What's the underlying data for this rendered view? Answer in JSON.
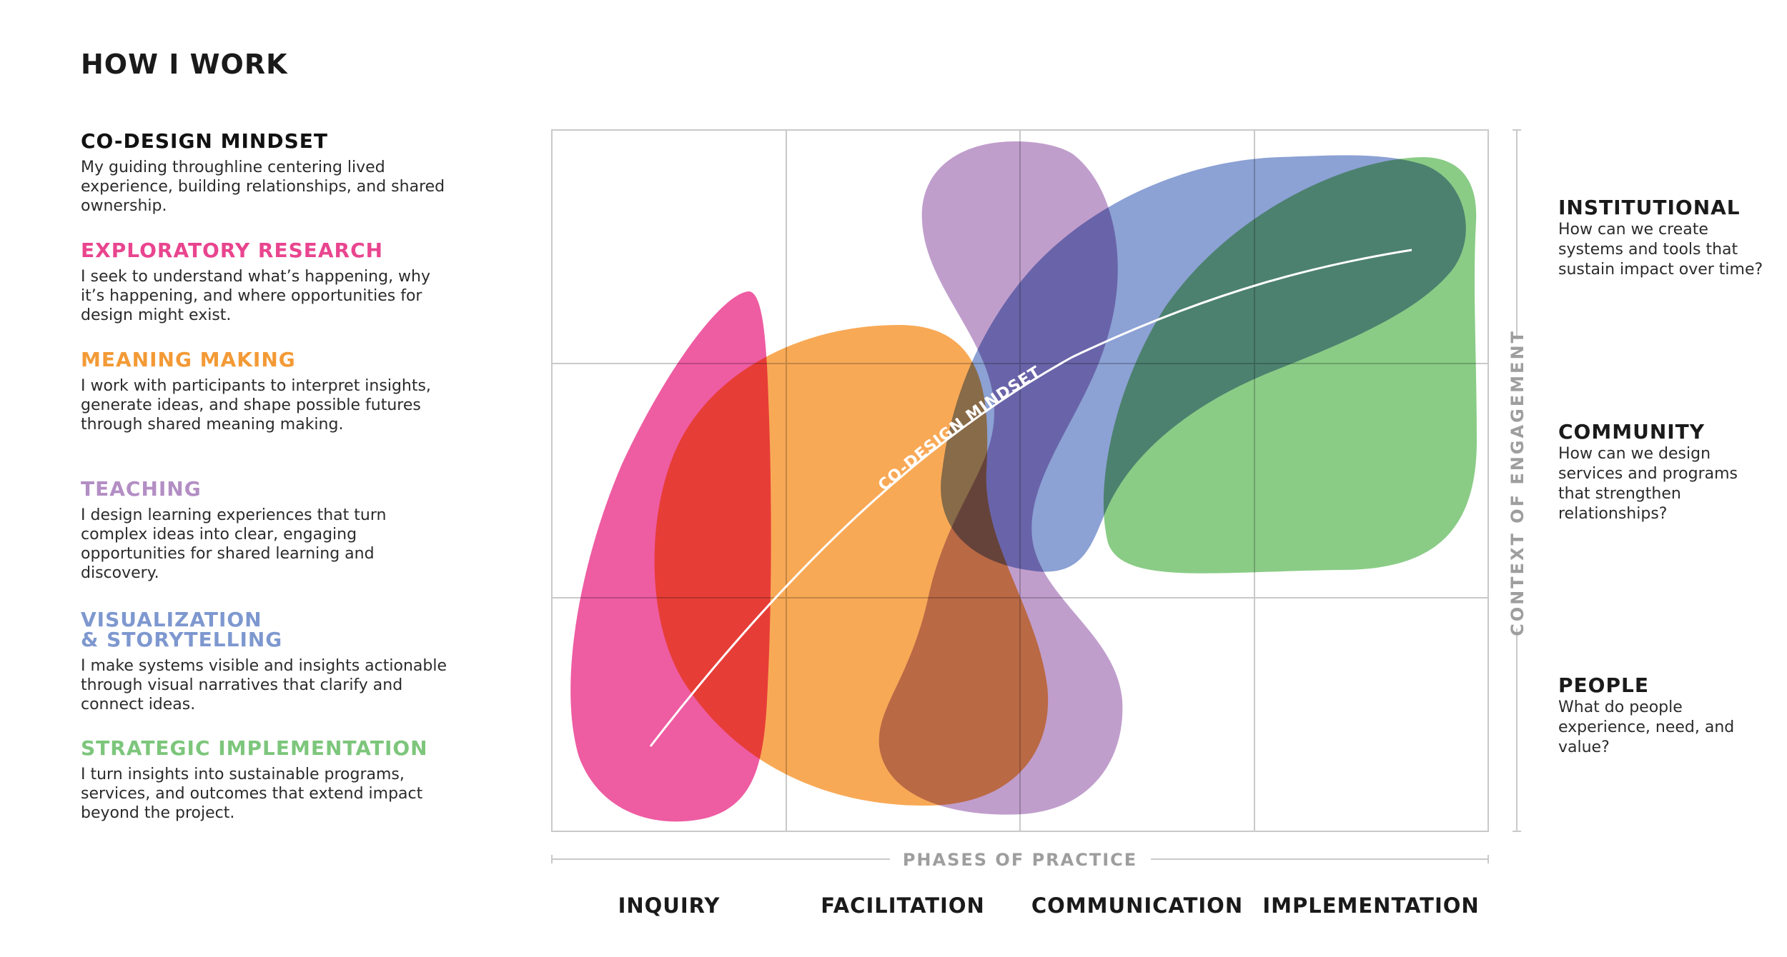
{
  "page": {
    "title": "HOW I WORK"
  },
  "legend": [
    {
      "heading": "CO-DESIGN MINDSET",
      "body": "My guiding throughline centering lived experience, building relationships, and shared ownership.",
      "color": "#111111"
    },
    {
      "heading": "EXPLORATORY RESEARCH",
      "body": "I seek to understand what’s happening, why it’s happening, and where opportunities for design might exist.",
      "color": "#e9458f"
    },
    {
      "heading": "MEANING MAKING",
      "body": "I work with participants to interpret insights, generate ideas, and shape possible futures through shared meaning making.",
      "color": "#f39a36"
    },
    {
      "heading": "TEACHING",
      "body": "I design learning experiences that turn complex ideas into clear, engaging opportunities for shared learning and discovery.",
      "color": "#b38ec4"
    },
    {
      "heading": "VISUALIZATION\n& STORYTELLING",
      "body": "I make systems visible and insights actionable through visual narratives that clarify and connect ideas.",
      "color": "#7e98cf"
    },
    {
      "heading": "STRATEGIC IMPLEMENTATION",
      "body": "I turn insights into sustainable programs, services, and outcomes that extend impact beyond the project.",
      "color": "#7dc67c"
    }
  ],
  "diagram": {
    "x_axis_title": "PHASES OF PRACTICE",
    "phases": [
      "INQUIRY",
      "FACILITATION",
      "COMMUNICATION",
      "IMPLEMENTATION"
    ],
    "y_axis_title": "CONTEXT OF ENGAGEMENT",
    "throughline_label": "CO-DESIGN MINDSET",
    "blob_colors": {
      "exploratory_research": "#ec4a98",
      "meaning_making": "#f7a044",
      "teaching": "#b994c6",
      "visualization_storytelling": "#7f97cf",
      "strategic_implementation": "#7dc679"
    }
  },
  "levels": [
    {
      "name": "INSTITUTIONAL",
      "question": "How can we create systems and tools that sustain impact over time?"
    },
    {
      "name": "COMMUNITY",
      "question": "How can we design services and programs that strengthen relationships?"
    },
    {
      "name": "PEOPLE",
      "question": "What do people experience, need, and value?"
    }
  ]
}
